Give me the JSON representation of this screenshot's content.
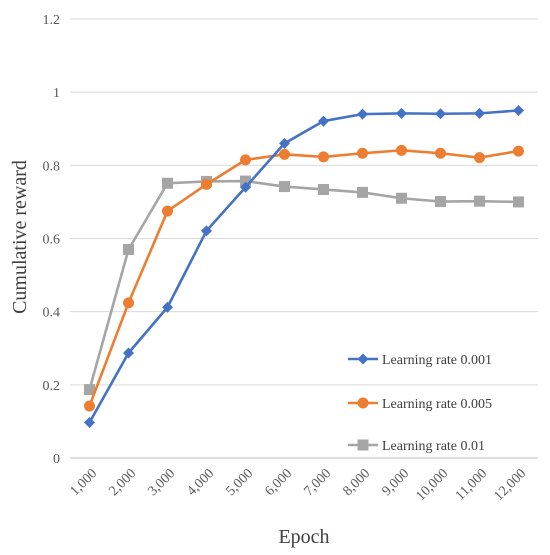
{
  "chart_data": {
    "type": "line",
    "title": "",
    "xlabel": "Epoch",
    "ylabel": "Cumulative reward",
    "x": [
      "1,000",
      "2,000",
      "3,000",
      "4,000",
      "5,000",
      "6,000",
      "7,000",
      "8,000",
      "9,000",
      "10,000",
      "11,000",
      "12,000"
    ],
    "ylim": [
      0,
      1.2
    ],
    "yticks": [
      "0",
      "0.2",
      "0.4",
      "0.6",
      "0.8",
      "1",
      "1.2"
    ],
    "grid": "horizontal",
    "legend_position": "bottom-right",
    "series": [
      {
        "name": "Learning rate 0.001",
        "color": "#4472C4",
        "marker": "diamond",
        "values": [
          0.097,
          0.287,
          0.412,
          0.621,
          0.74,
          0.86,
          0.921,
          0.94,
          0.942,
          0.941,
          0.942,
          0.95
        ]
      },
      {
        "name": "Learning rate 0.005",
        "color": "#ED7D31",
        "marker": "circle",
        "values": [
          0.142,
          0.424,
          0.675,
          0.748,
          0.815,
          0.83,
          0.823,
          0.833,
          0.841,
          0.833,
          0.821,
          0.839
        ]
      },
      {
        "name": "Learning rate 0.01",
        "color": "#A5A5A5",
        "marker": "square",
        "values": [
          0.187,
          0.57,
          0.751,
          0.756,
          0.757,
          0.742,
          0.734,
          0.726,
          0.71,
          0.701,
          0.702,
          0.7
        ]
      }
    ]
  }
}
